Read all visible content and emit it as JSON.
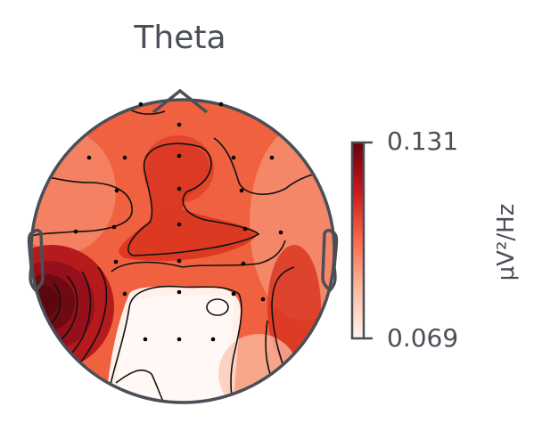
{
  "chart_data": {
    "type": "heatmap",
    "subtype": "topomap",
    "title": "Theta",
    "colorbar": {
      "min": 0.069,
      "max": 0.131,
      "min_label": "0.069",
      "max_label": "0.131",
      "units": "μV²/Hz",
      "colormap": "Reds",
      "colors": [
        "#fff5f0",
        "#fcbba1",
        "#fb6a4a",
        "#cb181d",
        "#67000d"
      ]
    },
    "outline_color": "#4a4f57",
    "sensor_color": "#000000"
  }
}
